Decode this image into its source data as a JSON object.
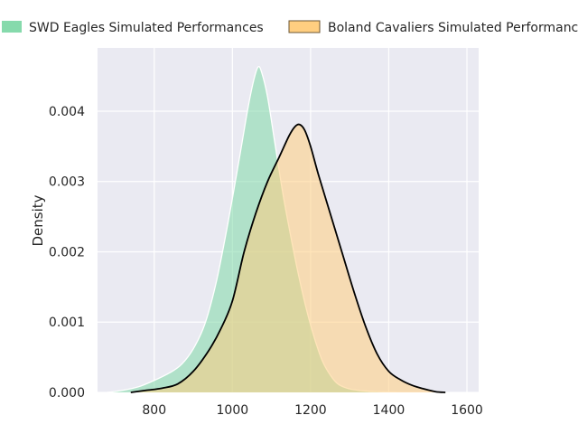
{
  "chart_data": {
    "type": "area",
    "title": "",
    "xlabel": "",
    "ylabel": "Density",
    "xlim": [
      655,
      1630
    ],
    "ylim": [
      0,
      0.0049
    ],
    "x_ticks": [
      800,
      1000,
      1200,
      1400,
      1600
    ],
    "y_ticks": [
      0.0,
      0.001,
      0.002,
      0.003,
      0.004
    ],
    "y_tick_labels": [
      "0.000",
      "0.001",
      "0.002",
      "0.003",
      "0.004"
    ],
    "grid": true,
    "legend_position": "top",
    "series": [
      {
        "name": "SWD Eagles Simulated Performances",
        "fill_color": "#7fd8a8",
        "line_color": "#ffffff",
        "points": [
          [
            680,
            0.0
          ],
          [
            720,
            3e-05
          ],
          [
            760,
            8e-05
          ],
          [
            800,
            0.00017
          ],
          [
            840,
            0.00028
          ],
          [
            870,
            0.0004
          ],
          [
            900,
            0.00062
          ],
          [
            930,
            0.00098
          ],
          [
            960,
            0.0016
          ],
          [
            990,
            0.00245
          ],
          [
            1020,
            0.0034
          ],
          [
            1040,
            0.00405
          ],
          [
            1055,
            0.00445
          ],
          [
            1066,
            0.00463
          ],
          [
            1075,
            0.00455
          ],
          [
            1090,
            0.0042
          ],
          [
            1110,
            0.0035
          ],
          [
            1130,
            0.0028
          ],
          [
            1150,
            0.0022
          ],
          [
            1170,
            0.00165
          ],
          [
            1190,
            0.00117
          ],
          [
            1210,
            0.00077
          ],
          [
            1230,
            0.00045
          ],
          [
            1250,
            0.00025
          ],
          [
            1270,
            0.00012
          ],
          [
            1300,
            5e-05
          ],
          [
            1340,
            2e-05
          ],
          [
            1380,
            1e-05
          ],
          [
            1430,
            0.0
          ]
        ]
      },
      {
        "name": "Boland Cavaliers Simulated Performances",
        "fill_color": "#ffce80",
        "line_color": "#000000",
        "points": [
          [
            740,
            0.0
          ],
          [
            780,
            3e-05
          ],
          [
            820,
            6e-05
          ],
          [
            860,
            0.00012
          ],
          [
            900,
            0.0003
          ],
          [
            940,
            0.0006
          ],
          [
            970,
            0.0009
          ],
          [
            1000,
            0.0013
          ],
          [
            1030,
            0.002
          ],
          [
            1060,
            0.00255
          ],
          [
            1090,
            0.003
          ],
          [
            1120,
            0.00335
          ],
          [
            1145,
            0.00365
          ],
          [
            1160,
            0.00378
          ],
          [
            1172,
            0.00381
          ],
          [
            1185,
            0.00373
          ],
          [
            1200,
            0.0035
          ],
          [
            1220,
            0.0031
          ],
          [
            1250,
            0.00255
          ],
          [
            1280,
            0.002
          ],
          [
            1310,
            0.00145
          ],
          [
            1340,
            0.00095
          ],
          [
            1370,
            0.00055
          ],
          [
            1400,
            0.0003
          ],
          [
            1430,
            0.00018
          ],
          [
            1460,
            0.0001
          ],
          [
            1490,
            5e-05
          ],
          [
            1520,
            1e-05
          ],
          [
            1545,
            0.0
          ]
        ]
      }
    ]
  }
}
